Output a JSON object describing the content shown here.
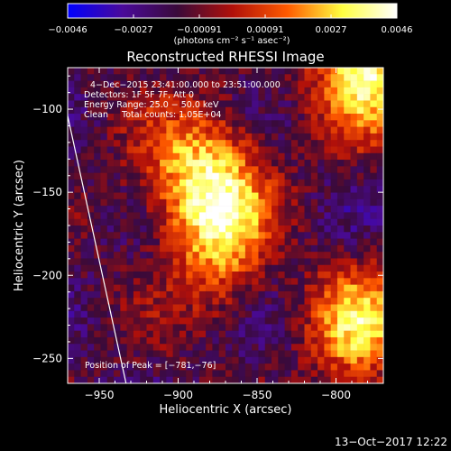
{
  "chart_data": {
    "type": "heatmap",
    "title": "Reconstructed RHESSI Image",
    "xlabel": "Heliocentric X (arcsec)",
    "ylabel": "Heliocentric Y (arcsec)",
    "xlim": [
      -970,
      -770
    ],
    "ylim": [
      -265,
      -75
    ],
    "x_ticks": [
      -950,
      -900,
      -850,
      -800
    ],
    "y_ticks": [
      -100,
      -150,
      -200,
      -250
    ],
    "x_tick_labels": [
      "−950",
      "−900",
      "−850",
      "−800"
    ],
    "y_tick_labels": [
      "−100",
      "−150",
      "−200",
      "−250"
    ],
    "colorbar": {
      "range": [
        -0.0046,
        0.0046
      ],
      "tick_labels": [
        "−0.0046",
        "−0.0027",
        "−0.00091",
        "0.00091",
        "0.0027",
        "0.0046"
      ],
      "unit_label": "(photons cm⁻² s⁻¹ asec⁻²)",
      "colors": [
        "#0000ff",
        "#4a0a9a",
        "#3a0a3a",
        "#b0100a",
        "#ff5a00",
        "#ffff40",
        "#ffffff"
      ]
    },
    "sources": [
      {
        "x": -883,
        "y": -146,
        "peak": 0.0046
      },
      {
        "x": -781,
        "y": -76,
        "peak": 0.0046
      },
      {
        "x": -786,
        "y": -230,
        "peak": 0.0036
      }
    ],
    "limb_line": {
      "points": [
        [
          -970,
          -104
        ],
        [
          -933,
          -265
        ]
      ]
    },
    "annotations": [
      "4−Dec−2015 23:41:00.000 to 23:51:00.000",
      "Detectors: 1F 5F 7F, Att 0",
      "Energy Range: 25.0 − 50.0 keV",
      "Clean     Total counts: 1.05E+04",
      "Position of Peak = [−781,−76]"
    ]
  },
  "timestamp": "13−Oct−2017 12:22"
}
